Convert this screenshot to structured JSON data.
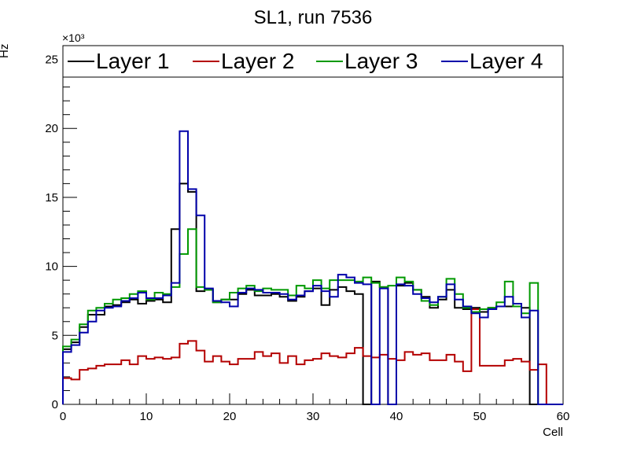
{
  "chart_data": {
    "type": "line",
    "title": "SL1, run 7536",
    "xlabel": "Cell",
    "ylabel": "Hz",
    "y_multiplier": "×10³",
    "xlim": [
      0,
      60
    ],
    "ylim": [
      0,
      26000
    ],
    "x_ticks": [
      0,
      10,
      20,
      30,
      40,
      50,
      60
    ],
    "y_ticks": [
      0,
      5,
      10,
      15,
      20,
      25
    ],
    "grid": false,
    "legend_position": "top",
    "series": [
      {
        "name": "Layer 1",
        "color": "#000000",
        "values": [
          4000,
          4500,
          5600,
          6500,
          6500,
          7100,
          7200,
          7400,
          7600,
          7300,
          7500,
          7600,
          7400,
          12700,
          16000,
          15400,
          8200,
          8300,
          7400,
          7600,
          7600,
          8000,
          8300,
          7900,
          7900,
          8000,
          7800,
          7500,
          7800,
          8200,
          8400,
          7200,
          8300,
          8500,
          8200,
          8000,
          0,
          8900,
          8500,
          0,
          8600,
          8800,
          8300,
          7800,
          7000,
          7600,
          8300,
          7000,
          6900,
          7000,
          6700,
          7000,
          7100,
          7100,
          7100,
          7000,
          0,
          0,
          0,
          0
        ]
      },
      {
        "name": "Layer 2",
        "color": "#b40000",
        "values": [
          1900,
          1800,
          2500,
          2600,
          2800,
          2900,
          2900,
          3200,
          2900,
          3500,
          3300,
          3400,
          3300,
          3400,
          4400,
          4600,
          3900,
          3100,
          3500,
          3100,
          2900,
          3300,
          3300,
          3800,
          3500,
          3700,
          3000,
          3500,
          2900,
          3200,
          3300,
          3700,
          3500,
          3400,
          3700,
          4100,
          3500,
          3400,
          3600,
          3300,
          3200,
          3800,
          3600,
          3700,
          3200,
          3200,
          3600,
          3100,
          2400,
          6900,
          2800,
          2800,
          2800,
          3200,
          3300,
          3100,
          2500,
          2900,
          0,
          0
        ]
      },
      {
        "name": "Layer 3",
        "color": "#009900",
        "values": [
          4200,
          4700,
          5800,
          6800,
          7000,
          7300,
          7600,
          7700,
          8000,
          8200,
          7600,
          8100,
          8000,
          8500,
          10900,
          12700,
          8500,
          8300,
          7400,
          7600,
          8100,
          8400,
          8600,
          8200,
          8400,
          8300,
          8300,
          7900,
          8600,
          8400,
          9000,
          8400,
          9000,
          9000,
          9000,
          8900,
          9200,
          8800,
          8500,
          8600,
          9200,
          8900,
          8300,
          7500,
          7200,
          7800,
          9100,
          8000,
          7000,
          6700,
          6900,
          7000,
          7400,
          8900,
          7100,
          6600,
          8800,
          0,
          0,
          0
        ]
      },
      {
        "name": "Layer 4",
        "color": "#0000aa",
        "values": [
          3800,
          4300,
          5200,
          6000,
          6800,
          7000,
          7100,
          7500,
          7700,
          8100,
          7700,
          7700,
          7900,
          8800,
          19800,
          15600,
          13700,
          8400,
          7500,
          7400,
          7100,
          8100,
          8400,
          8300,
          8100,
          8100,
          8000,
          7600,
          7900,
          8200,
          8600,
          8200,
          7800,
          9400,
          9200,
          8800,
          8700,
          0,
          8400,
          0,
          8700,
          8600,
          8000,
          7700,
          7400,
          7800,
          8700,
          7600,
          7100,
          6600,
          6300,
          6900,
          7100,
          7800,
          7300,
          6300,
          6800,
          0,
          0,
          0
        ]
      }
    ]
  }
}
